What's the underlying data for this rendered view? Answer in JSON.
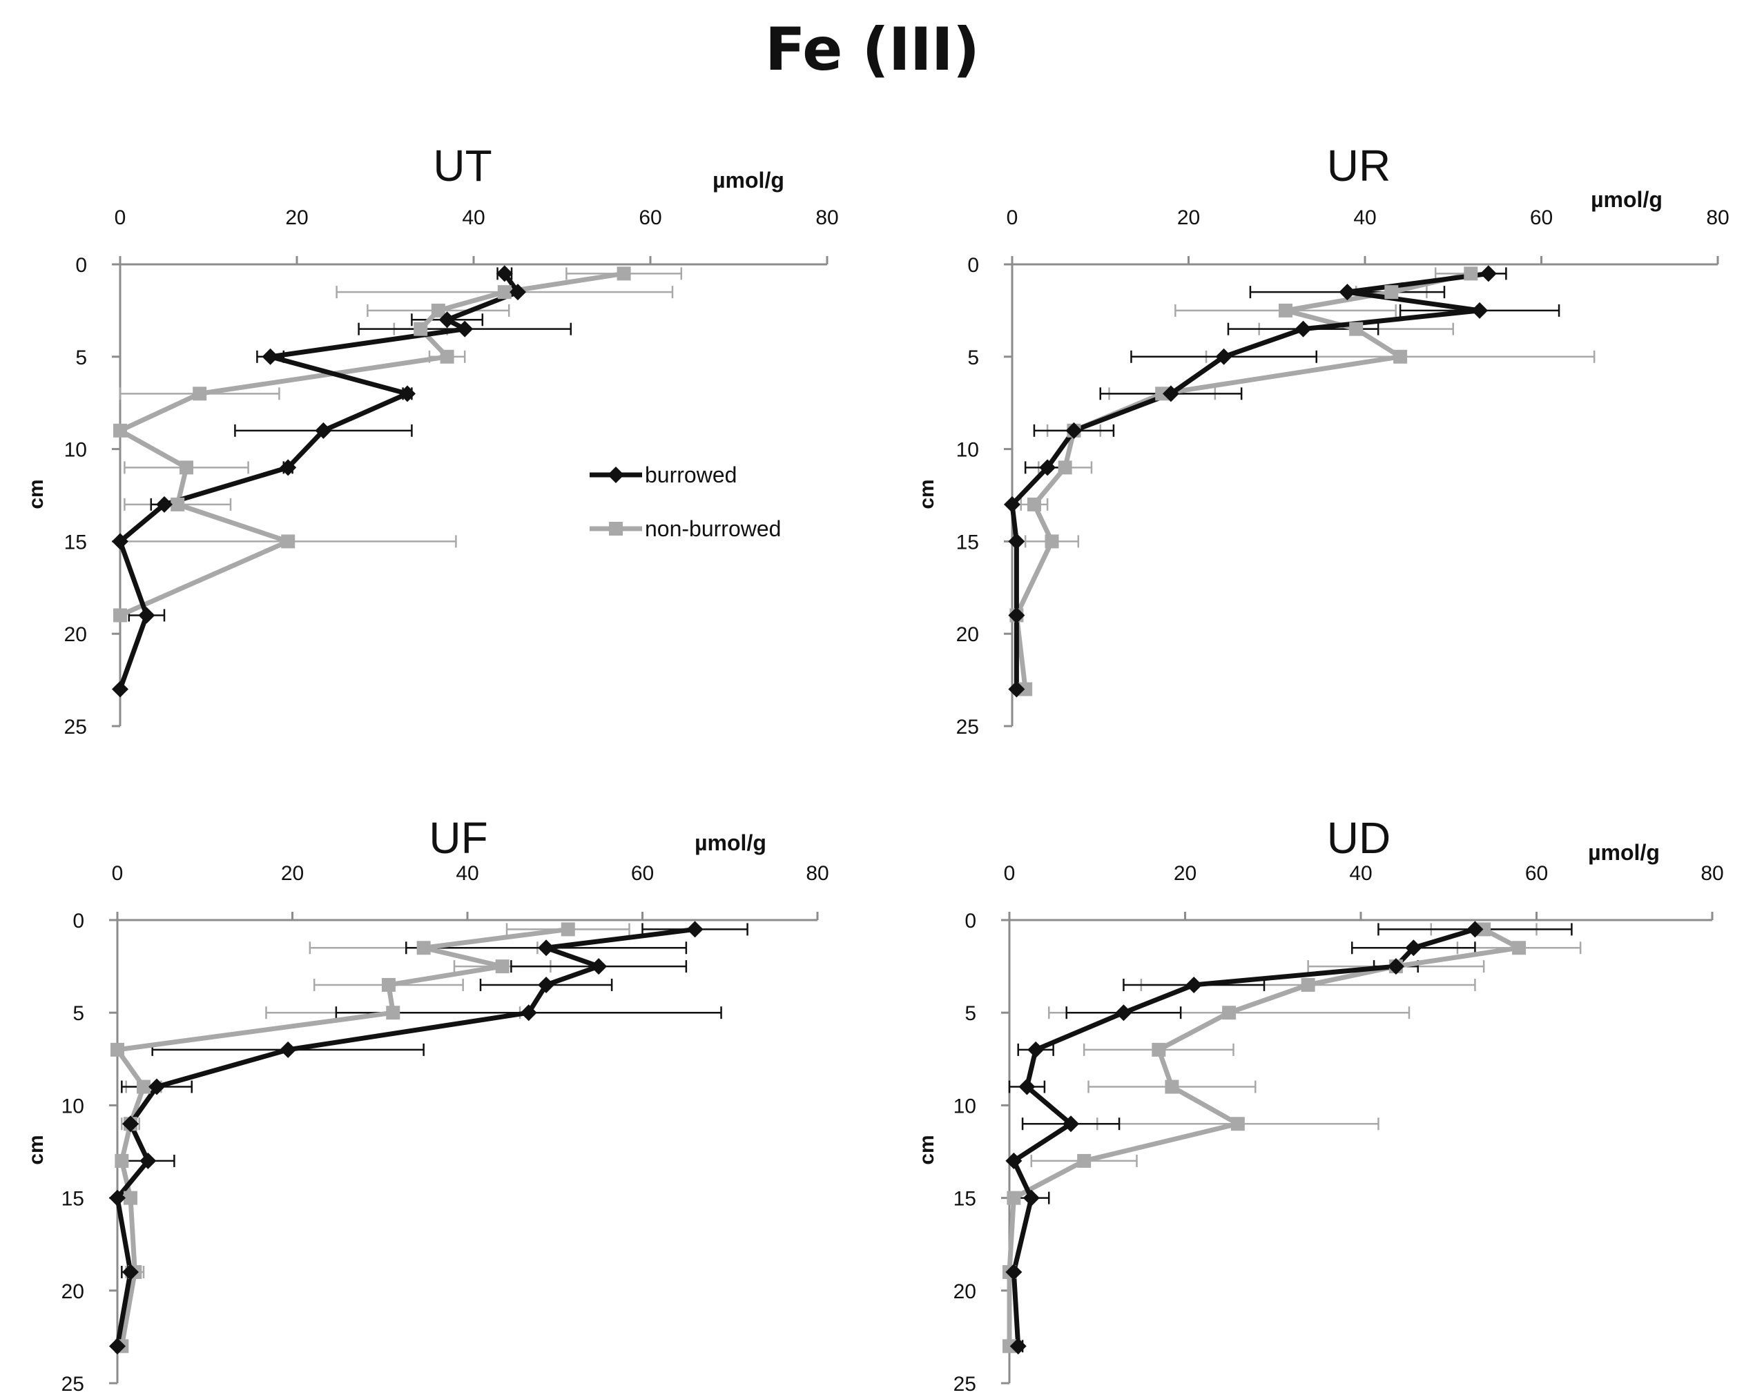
{
  "figure": {
    "title": "Fe (III)"
  },
  "legend": {
    "items": [
      {
        "label": "burrowed",
        "color": "#111111",
        "marker": "diamond"
      },
      {
        "label": "non-burrowed",
        "color": "#a8a8a8",
        "marker": "square"
      }
    ]
  },
  "chart_data": [
    {
      "type": "line",
      "title": "UT",
      "x_unit": "µmol/g",
      "ylabel": "cm",
      "xlim": [
        0,
        80
      ],
      "ylim": [
        0,
        25
      ],
      "x_ticks": [
        0,
        20,
        40,
        60,
        80
      ],
      "y_ticks": [
        0,
        5,
        10,
        15,
        20,
        25
      ],
      "series": [
        {
          "name": "burrowed",
          "points": [
            {
              "x": 43.5,
              "y": 0.5,
              "err": 0.8
            },
            {
              "x": 45,
              "y": 1.5,
              "err": 0
            },
            {
              "x": 37,
              "y": 3,
              "err": 4
            },
            {
              "x": 39,
              "y": 3.5,
              "err": 12
            },
            {
              "x": 17,
              "y": 5,
              "err": 1.5
            },
            {
              "x": 32.5,
              "y": 7,
              "err": 0.5
            },
            {
              "x": 23,
              "y": 9,
              "err": 10
            },
            {
              "x": 19,
              "y": 11,
              "err": 0.5
            },
            {
              "x": 5,
              "y": 13,
              "err": 1.5
            },
            {
              "x": 0,
              "y": 15,
              "err": 0
            },
            {
              "x": 3,
              "y": 19,
              "err": 2
            },
            {
              "x": 0,
              "y": 23,
              "err": 0
            }
          ]
        },
        {
          "name": "non-burrowed",
          "points": [
            {
              "x": 57,
              "y": 0.5,
              "err": 6.5
            },
            {
              "x": 43.5,
              "y": 1.5,
              "err": 19
            },
            {
              "x": 36,
              "y": 2.5,
              "err": 8
            },
            {
              "x": 34,
              "y": 3.5,
              "err": 3
            },
            {
              "x": 37,
              "y": 5,
              "err": 2
            },
            {
              "x": 9,
              "y": 7,
              "err": 9
            },
            {
              "x": 0,
              "y": 9,
              "err": 0
            },
            {
              "x": 7.5,
              "y": 11,
              "err": 7
            },
            {
              "x": 6.5,
              "y": 13,
              "err": 6
            },
            {
              "x": 19,
              "y": 15,
              "err": 19
            },
            {
              "x": 0,
              "y": 19,
              "err": 0
            }
          ]
        }
      ]
    },
    {
      "type": "line",
      "title": "UR",
      "x_unit": "µmol/g",
      "ylabel": "cm",
      "xlim": [
        0,
        80
      ],
      "ylim": [
        0,
        25
      ],
      "x_ticks": [
        0,
        20,
        40,
        60,
        80
      ],
      "y_ticks": [
        0,
        5,
        10,
        15,
        20,
        25
      ],
      "series": [
        {
          "name": "burrowed",
          "points": [
            {
              "x": 54,
              "y": 0.5,
              "err": 2
            },
            {
              "x": 38,
              "y": 1.5,
              "err": 11
            },
            {
              "x": 53,
              "y": 2.5,
              "err": 9
            },
            {
              "x": 33,
              "y": 3.5,
              "err": 8.5
            },
            {
              "x": 24,
              "y": 5,
              "err": 10.5
            },
            {
              "x": 18,
              "y": 7,
              "err": 8
            },
            {
              "x": 7,
              "y": 9,
              "err": 4.5
            },
            {
              "x": 4,
              "y": 11,
              "err": 2.5
            },
            {
              "x": 0,
              "y": 13,
              "err": 0
            },
            {
              "x": 0.5,
              "y": 15,
              "err": 0
            },
            {
              "x": 0.5,
              "y": 19,
              "err": 0
            },
            {
              "x": 0.5,
              "y": 23,
              "err": 0
            }
          ]
        },
        {
          "name": "non-burrowed",
          "points": [
            {
              "x": 52,
              "y": 0.5,
              "err": 4
            },
            {
              "x": 43,
              "y": 1.5,
              "err": 4
            },
            {
              "x": 31,
              "y": 2.5,
              "err": 12.5
            },
            {
              "x": 39,
              "y": 3.5,
              "err": 11
            },
            {
              "x": 44,
              "y": 5,
              "err": 22
            },
            {
              "x": 17,
              "y": 7,
              "err": 6
            },
            {
              "x": 7,
              "y": 9,
              "err": 3
            },
            {
              "x": 6,
              "y": 11,
              "err": 3
            },
            {
              "x": 2.5,
              "y": 13,
              "err": 1.5
            },
            {
              "x": 4.5,
              "y": 15,
              "err": 3
            },
            {
              "x": 0.5,
              "y": 19,
              "err": 0
            },
            {
              "x": 1.5,
              "y": 23,
              "err": 0
            }
          ]
        }
      ]
    },
    {
      "type": "line",
      "title": "UF",
      "x_unit": "µmol/g",
      "ylabel": "cm",
      "xlim": [
        0,
        80
      ],
      "ylim": [
        0,
        25
      ],
      "x_ticks": [
        0,
        20,
        40,
        60,
        80
      ],
      "y_ticks": [
        0,
        5,
        10,
        15,
        20,
        25
      ],
      "series": [
        {
          "name": "burrowed",
          "points": [
            {
              "x": 66,
              "y": 0.5,
              "err": 6
            },
            {
              "x": 49,
              "y": 1.5,
              "err": 16
            },
            {
              "x": 55,
              "y": 2.5,
              "err": 10
            },
            {
              "x": 49,
              "y": 3.5,
              "err": 7.5
            },
            {
              "x": 47,
              "y": 5,
              "err": 22
            },
            {
              "x": 19.5,
              "y": 7,
              "err": 15.5
            },
            {
              "x": 4.5,
              "y": 9,
              "err": 4
            },
            {
              "x": 1.5,
              "y": 11,
              "err": 0
            },
            {
              "x": 3.5,
              "y": 13,
              "err": 3
            },
            {
              "x": 0,
              "y": 15,
              "err": 0
            },
            {
              "x": 1.5,
              "y": 19,
              "err": 1
            },
            {
              "x": 0,
              "y": 23,
              "err": 0
            }
          ]
        },
        {
          "name": "non-burrowed",
          "points": [
            {
              "x": 51.5,
              "y": 0.5,
              "err": 7
            },
            {
              "x": 35,
              "y": 1.5,
              "err": 13
            },
            {
              "x": 44,
              "y": 2.5,
              "err": 5.5
            },
            {
              "x": 31,
              "y": 3.5,
              "err": 8.5
            },
            {
              "x": 31.5,
              "y": 5,
              "err": 14.5
            },
            {
              "x": 0,
              "y": 7,
              "err": 0
            },
            {
              "x": 3,
              "y": 9,
              "err": 2
            },
            {
              "x": 1.5,
              "y": 11,
              "err": 1
            },
            {
              "x": 0.5,
              "y": 13,
              "err": 0.5
            },
            {
              "x": 1.5,
              "y": 15,
              "err": 0
            },
            {
              "x": 2,
              "y": 19,
              "err": 1
            },
            {
              "x": 0.5,
              "y": 23,
              "err": 0
            }
          ]
        }
      ]
    },
    {
      "type": "line",
      "title": "UD",
      "x_unit": "µmol/g",
      "ylabel": "cm",
      "xlim": [
        0,
        80
      ],
      "ylim": [
        0,
        25
      ],
      "x_ticks": [
        0,
        20,
        40,
        60,
        80
      ],
      "y_ticks": [
        0,
        5,
        10,
        15,
        20,
        25
      ],
      "series": [
        {
          "name": "burrowed",
          "points": [
            {
              "x": 53,
              "y": 0.5,
              "err": 11
            },
            {
              "x": 46,
              "y": 1.5,
              "err": 7
            },
            {
              "x": 44,
              "y": 2.5,
              "err": 2.5
            },
            {
              "x": 21,
              "y": 3.5,
              "err": 8
            },
            {
              "x": 13,
              "y": 5,
              "err": 6.5
            },
            {
              "x": 3,
              "y": 7,
              "err": 2
            },
            {
              "x": 2,
              "y": 9,
              "err": 2
            },
            {
              "x": 7,
              "y": 11,
              "err": 5.5
            },
            {
              "x": 0.5,
              "y": 13,
              "err": 0
            },
            {
              "x": 2.5,
              "y": 15,
              "err": 2
            },
            {
              "x": 0.5,
              "y": 19,
              "err": 0
            },
            {
              "x": 1,
              "y": 23,
              "err": 0.5
            }
          ]
        },
        {
          "name": "non-burrowed",
          "points": [
            {
              "x": 54,
              "y": 0.5,
              "err": 6
            },
            {
              "x": 58,
              "y": 1.5,
              "err": 7
            },
            {
              "x": 44,
              "y": 2.5,
              "err": 10
            },
            {
              "x": 34,
              "y": 3.5,
              "err": 19
            },
            {
              "x": 25,
              "y": 5,
              "err": 20.5
            },
            {
              "x": 17,
              "y": 7,
              "err": 8.5
            },
            {
              "x": 18.5,
              "y": 9,
              "err": 9.5
            },
            {
              "x": 26,
              "y": 11,
              "err": 16
            },
            {
              "x": 8.5,
              "y": 13,
              "err": 6
            },
            {
              "x": 0.5,
              "y": 15,
              "err": 0
            },
            {
              "x": 0,
              "y": 19,
              "err": 0
            },
            {
              "x": 0,
              "y": 23,
              "err": 0
            }
          ]
        }
      ]
    }
  ]
}
